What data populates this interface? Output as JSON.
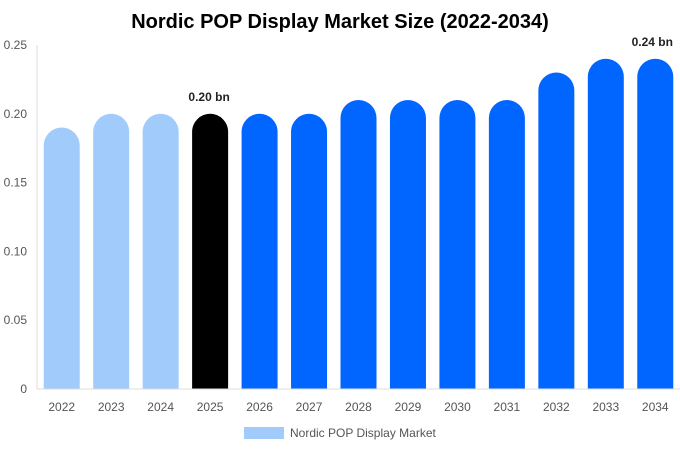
{
  "chart_data": {
    "type": "bar",
    "title": "Nordic POP Display Market Size (2022-2034)",
    "categories": [
      "2022",
      "2023",
      "2024",
      "2025",
      "2026",
      "2027",
      "2028",
      "2029",
      "2030",
      "2031",
      "2032",
      "2033",
      "2034"
    ],
    "series": [
      {
        "name": "Nordic POP Display Market",
        "values": [
          0.19,
          0.2,
          0.2,
          0.2,
          0.2,
          0.2,
          0.21,
          0.21,
          0.21,
          0.21,
          0.23,
          0.24,
          0.24
        ]
      }
    ],
    "bar_colors": [
      "#a0cbfb",
      "#a0cbfb",
      "#a0cbfb",
      "#000000",
      "#0066ff",
      "#0066ff",
      "#0066ff",
      "#0066ff",
      "#0066ff",
      "#0066ff",
      "#0066ff",
      "#0066ff",
      "#0066ff"
    ],
    "data_labels": [
      {
        "category": "2025",
        "text": "0.20 bn"
      },
      {
        "category": "2034",
        "text": "0.24 bn"
      }
    ],
    "ylim": [
      0,
      0.25
    ],
    "yticks": [
      0,
      0.05,
      0.1,
      0.15,
      0.2,
      0.25
    ],
    "ytick_labels": [
      "0",
      "0.05",
      "0.10",
      "0.15",
      "0.20",
      "0.25"
    ],
    "xlabel": "",
    "ylabel": "",
    "grid": false,
    "legend": {
      "position": "bottom-center",
      "color": "#a0cbfb"
    }
  }
}
